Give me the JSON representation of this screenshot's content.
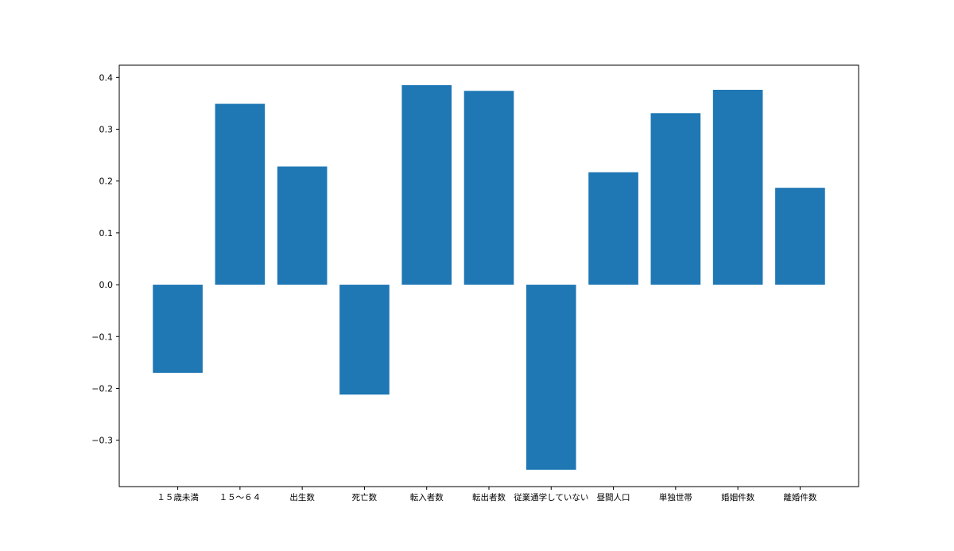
{
  "chart_data": {
    "type": "bar",
    "title": "",
    "xlabel": "",
    "ylabel": "",
    "categories": [
      "１５歳未満",
      "１５～６４",
      "出生数",
      "死亡数",
      "転入者数",
      "転出者数",
      "従業通学していない",
      "昼間人口",
      "単独世帯",
      "婚姻件数",
      "離婚件数"
    ],
    "values": [
      -0.17,
      0.349,
      0.228,
      -0.212,
      0.385,
      0.374,
      -0.357,
      0.217,
      0.331,
      0.376,
      0.187
    ],
    "ylim": [
      -0.3895,
      0.4235
    ],
    "yticks": [
      -0.3,
      -0.2,
      -0.1,
      0.0,
      0.1,
      0.2,
      0.3,
      0.4
    ],
    "ytick_labels": [
      "−0.3",
      "−0.2",
      "−0.1",
      "0.0",
      "0.1",
      "0.2",
      "0.3",
      "0.4"
    ],
    "bar_color": "#1f77b4",
    "grid": false,
    "legend": "none"
  }
}
